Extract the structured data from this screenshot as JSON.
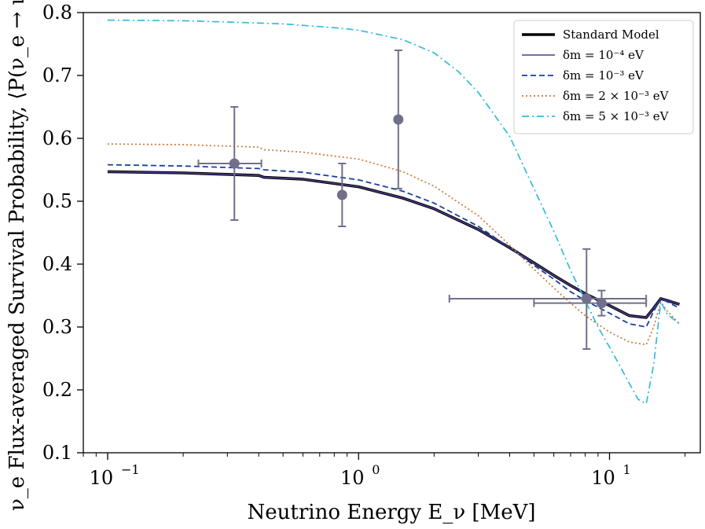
{
  "chart_data": {
    "type": "line",
    "xlabel": "Neutrino Energy E_ν [MeV]",
    "ylabel": "ν_e Flux-averaged Survival Probability, ⟨P(ν_e → ν_e)⟩",
    "xscale": "log",
    "xlim": [
      0.08,
      23
    ],
    "ylim": [
      0.1,
      0.8
    ],
    "xticks": [
      {
        "value": 0.1,
        "label": "10",
        "exp": "−1"
      },
      {
        "value": 1,
        "label": "10",
        "exp": "0"
      },
      {
        "value": 10,
        "label": "10",
        "exp": "1"
      }
    ],
    "yticks": [
      {
        "value": 0.1,
        "label": "0.1"
      },
      {
        "value": 0.2,
        "label": "0.2"
      },
      {
        "value": 0.3,
        "label": "0.3"
      },
      {
        "value": 0.4,
        "label": "0.4"
      },
      {
        "value": 0.5,
        "label": "0.5"
      },
      {
        "value": 0.6,
        "label": "0.6"
      },
      {
        "value": 0.7,
        "label": "0.7"
      },
      {
        "value": 0.8,
        "label": "0.8"
      }
    ],
    "legend_position": "top-right",
    "grid": false,
    "series": [
      {
        "name": "Standard Model",
        "color": "#000000",
        "style": "solid-thick",
        "points": [
          [
            0.1,
            0.547
          ],
          [
            0.2,
            0.545
          ],
          [
            0.4,
            0.541
          ],
          [
            0.42,
            0.538
          ],
          [
            0.6,
            0.535
          ],
          [
            1.0,
            0.523
          ],
          [
            1.5,
            0.505
          ],
          [
            2.0,
            0.488
          ],
          [
            3.0,
            0.455
          ],
          [
            4.0,
            0.426
          ],
          [
            5.0,
            0.402
          ],
          [
            6.0,
            0.382
          ],
          [
            7.0,
            0.366
          ],
          [
            8.0,
            0.353
          ],
          [
            10.0,
            0.334
          ],
          [
            12.0,
            0.318
          ],
          [
            14.0,
            0.315
          ],
          [
            15.0,
            0.33
          ],
          [
            16.0,
            0.345
          ],
          [
            17.0,
            0.342
          ],
          [
            19.0,
            0.336
          ]
        ]
      },
      {
        "name": "δm = 10⁻⁴ eV",
        "color": "#4b3a8c",
        "style": "solid",
        "points": [
          [
            0.1,
            0.547
          ],
          [
            0.2,
            0.545
          ],
          [
            0.4,
            0.541
          ],
          [
            0.42,
            0.538
          ],
          [
            0.6,
            0.535
          ],
          [
            1.0,
            0.523
          ],
          [
            1.5,
            0.505
          ],
          [
            2.0,
            0.488
          ],
          [
            3.0,
            0.455
          ],
          [
            4.0,
            0.426
          ],
          [
            5.0,
            0.402
          ],
          [
            6.0,
            0.382
          ],
          [
            7.0,
            0.366
          ],
          [
            8.0,
            0.353
          ],
          [
            10.0,
            0.334
          ],
          [
            12.0,
            0.318
          ],
          [
            14.0,
            0.315
          ],
          [
            15.0,
            0.33
          ],
          [
            16.0,
            0.345
          ],
          [
            17.0,
            0.342
          ],
          [
            19.0,
            0.336
          ]
        ]
      },
      {
        "name": "δm = 10⁻³ eV",
        "color": "#1b3f9a",
        "style": "dashed",
        "points": [
          [
            0.1,
            0.558
          ],
          [
            0.2,
            0.556
          ],
          [
            0.4,
            0.552
          ],
          [
            0.42,
            0.55
          ],
          [
            0.6,
            0.546
          ],
          [
            1.0,
            0.534
          ],
          [
            1.5,
            0.516
          ],
          [
            2.0,
            0.497
          ],
          [
            3.0,
            0.46
          ],
          [
            4.0,
            0.426
          ],
          [
            5.0,
            0.398
          ],
          [
            6.0,
            0.376
          ],
          [
            7.0,
            0.356
          ],
          [
            8.0,
            0.342
          ],
          [
            10.0,
            0.322
          ],
          [
            12.0,
            0.305
          ],
          [
            14.0,
            0.3
          ],
          [
            15.0,
            0.325
          ],
          [
            16.0,
            0.345
          ],
          [
            17.0,
            0.34
          ],
          [
            19.0,
            0.33
          ]
        ]
      },
      {
        "name": "δm = 2 × 10⁻³ eV",
        "color": "#cc7733",
        "style": "dotted",
        "points": [
          [
            0.1,
            0.591
          ],
          [
            0.2,
            0.59
          ],
          [
            0.4,
            0.586
          ],
          [
            0.42,
            0.582
          ],
          [
            0.6,
            0.578
          ],
          [
            1.0,
            0.567
          ],
          [
            1.5,
            0.547
          ],
          [
            2.0,
            0.524
          ],
          [
            3.0,
            0.477
          ],
          [
            4.0,
            0.43
          ],
          [
            5.0,
            0.392
          ],
          [
            6.0,
            0.362
          ],
          [
            7.0,
            0.338
          ],
          [
            8.0,
            0.318
          ],
          [
            10.0,
            0.292
          ],
          [
            12.0,
            0.276
          ],
          [
            14.0,
            0.272
          ],
          [
            15.0,
            0.3
          ],
          [
            16.0,
            0.34
          ],
          [
            17.0,
            0.325
          ],
          [
            19.0,
            0.305
          ]
        ]
      },
      {
        "name": "δm = 5 × 10⁻³ eV",
        "color": "#33bbdd",
        "style": "dashdot",
        "points": [
          [
            0.1,
            0.788
          ],
          [
            0.2,
            0.787
          ],
          [
            0.3,
            0.785
          ],
          [
            0.5,
            0.782
          ],
          [
            0.8,
            0.776
          ],
          [
            1.0,
            0.772
          ],
          [
            1.5,
            0.757
          ],
          [
            2.0,
            0.736
          ],
          [
            2.5,
            0.706
          ],
          [
            3.0,
            0.673
          ],
          [
            4.0,
            0.603
          ],
          [
            5.0,
            0.52
          ],
          [
            6.0,
            0.452
          ],
          [
            7.0,
            0.39
          ],
          [
            8.0,
            0.342
          ],
          [
            9.0,
            0.3
          ],
          [
            10.0,
            0.268
          ],
          [
            11.0,
            0.238
          ],
          [
            12.0,
            0.21
          ],
          [
            13.0,
            0.185
          ],
          [
            14.0,
            0.178
          ],
          [
            15.0,
            0.24
          ],
          [
            16.0,
            0.34
          ],
          [
            17.0,
            0.32
          ],
          [
            19.0,
            0.305
          ]
        ]
      }
    ],
    "data_points": [
      {
        "x": 0.32,
        "y": 0.56,
        "xerr": [
          0.23,
          0.41
        ],
        "yerr": [
          0.47,
          0.65
        ]
      },
      {
        "x": 0.86,
        "y": 0.51,
        "xerr": null,
        "yerr": [
          0.46,
          0.56
        ]
      },
      {
        "x": 1.44,
        "y": 0.63,
        "xerr": null,
        "yerr": [
          0.52,
          0.74
        ]
      },
      {
        "x": 8.1,
        "y": 0.345,
        "xerr": [
          2.3,
          14.0
        ],
        "yerr": [
          0.265,
          0.424
        ]
      },
      {
        "x": 9.3,
        "y": 0.338,
        "xerr": [
          5.0,
          14.0
        ],
        "yerr": [
          0.318,
          0.358
        ]
      }
    ],
    "data_point_color": "#70708a"
  }
}
